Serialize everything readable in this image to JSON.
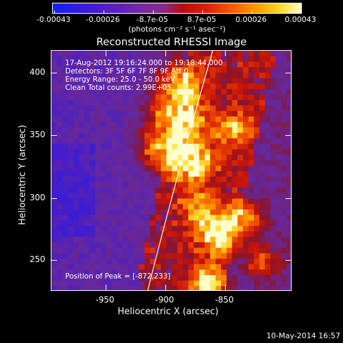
{
  "colorbar": {
    "ticks": [
      "-0.00043",
      "-0.00026",
      "-8.7e-05",
      "8.7e-05",
      "0.00026",
      "0.00043"
    ],
    "unit_label": "(photons cm⁻² s⁻¹ asec⁻²)"
  },
  "title": "Reconstructed RHESSI Image",
  "info": {
    "line1": "17-Aug-2012 19:16:24.000 to 19:18:44.000",
    "line2": "Detectors: 3F 5F 6F 7F 8F 9F  Att 0",
    "line3": "Energy Range: 25.0 - 50.0 keV",
    "line4": "Clean    Total counts: 2.99E+05"
  },
  "peak": "Position of Peak = [-872,233]",
  "x_axis": {
    "label": "Heliocentric X (arcsec)",
    "ticks": [
      "-950",
      "-900",
      "-850"
    ]
  },
  "y_axis": {
    "label": "Heliocentric Y (arcsec)",
    "ticks": [
      "400",
      "350",
      "300",
      "250"
    ]
  },
  "footer_date": "10-May-2014 16:57"
}
